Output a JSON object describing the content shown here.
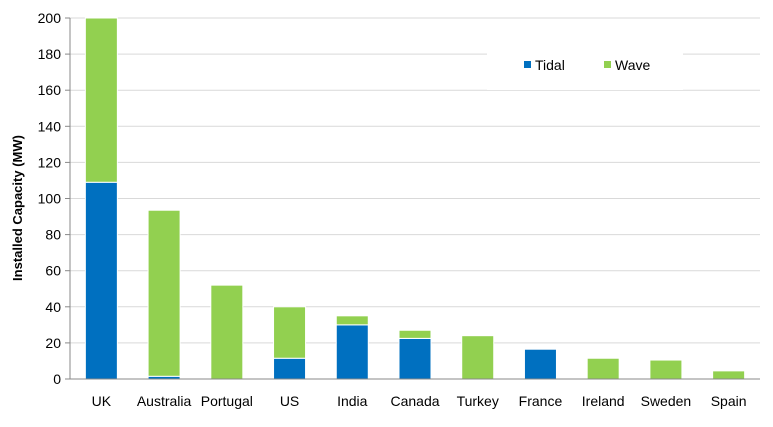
{
  "chart_data": {
    "type": "bar",
    "stacked": true,
    "ylabel": "Installed Capacity (MW)",
    "xlabel": "",
    "ylim": [
      0,
      200
    ],
    "yticks": [
      0,
      20,
      40,
      60,
      80,
      100,
      120,
      140,
      160,
      180,
      200
    ],
    "grid": true,
    "legend_position": "top-right",
    "categories": [
      "UK",
      "Australia",
      "Portugal",
      "US",
      "India",
      "Canada",
      "Turkey",
      "France",
      "Ireland",
      "Sweden",
      "Spain"
    ],
    "series": [
      {
        "name": "Tidal",
        "color": "#0070c0",
        "values": [
          109,
          1.5,
          0,
          11.5,
          30,
          22.5,
          0,
          16.5,
          0,
          0,
          0
        ]
      },
      {
        "name": "Wave",
        "color": "#92d050",
        "values": [
          91,
          92,
          52,
          28.5,
          5,
          4.5,
          24,
          0,
          11.5,
          10.5,
          4.5
        ]
      }
    ]
  }
}
